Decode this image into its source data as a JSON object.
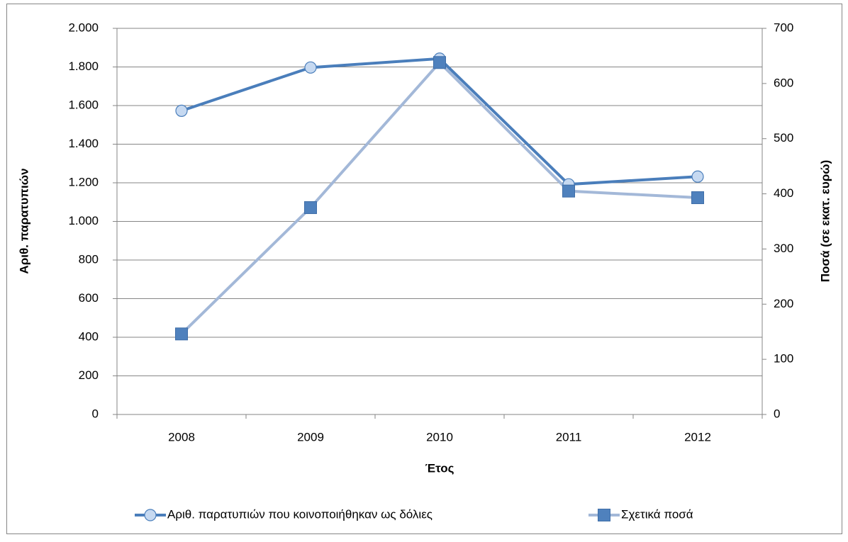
{
  "chart_data": {
    "type": "line",
    "x_label": "Έτος",
    "y_label": "Αριθ. παρατυπιών",
    "y2_label": "Ποσά (σε εκατ. ευρώ)",
    "categories": [
      "2008",
      "2009",
      "2010",
      "2011",
      "2012"
    ],
    "series": [
      {
        "name": "Αριθ. παρατυπιών που κοινοποιήθηκαν ως δόλιες",
        "color": "#4a7ebb",
        "marker": "circle",
        "marker_fill": "#c6d9f1",
        "values": [
          1573,
          1797,
          1843,
          1192,
          1232
        ]
      },
      {
        "name": "Σχετικά ποσά",
        "color": "#a3b8d8",
        "marker": "square",
        "marker_fill": "#4f81bd",
        "axis": "y2",
        "values": [
          146,
          375,
          638,
          405,
          393
        ]
      }
    ],
    "ylim": [
      0,
      2000
    ],
    "yticks": [
      0,
      200,
      400,
      600,
      800,
      {
        "value": 1000,
        "label": "1.000"
      },
      {
        "value": 1200,
        "label": "1.200"
      },
      {
        "value": 1400,
        "label": "1.400"
      },
      {
        "value": 1600,
        "label": "1.600"
      },
      {
        "value": 1800,
        "label": "1.800"
      },
      {
        "value": 2000,
        "label": "2.000"
      }
    ],
    "y2lim": [
      0,
      700
    ],
    "y2ticks": [
      0,
      100,
      200,
      300,
      400,
      500,
      600,
      700
    ],
    "grid": true,
    "legend": "bottom"
  }
}
